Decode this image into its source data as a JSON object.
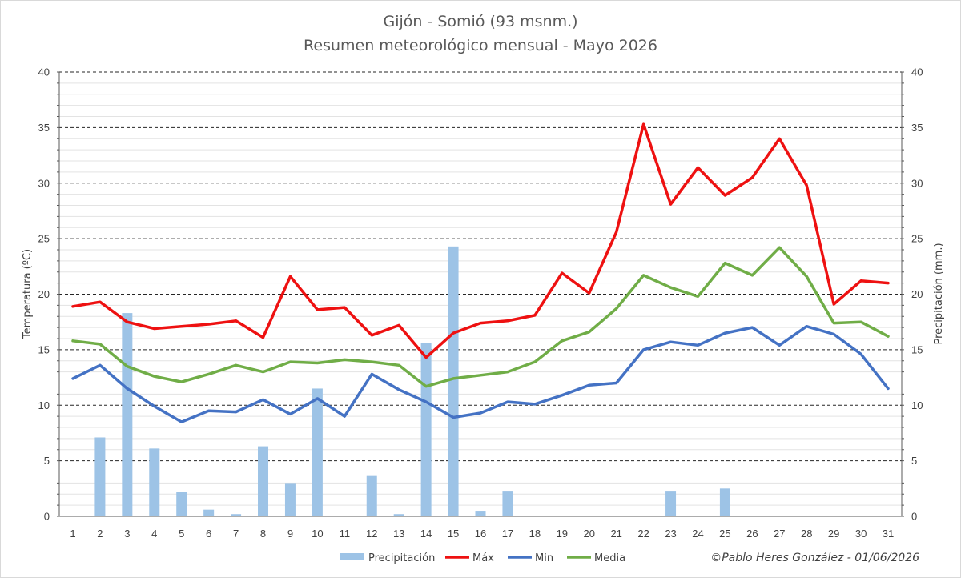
{
  "chart_data": {
    "type": "line",
    "title": "Gijón - Somió (93 msnm.)",
    "subtitle": "Resumen meteorológico mensual - Mayo 2026",
    "ylabel": "Temperatura (ºC)",
    "y2label": "Precipitación (mm.)",
    "ylim": [
      0,
      40
    ],
    "y2lim": [
      0,
      40
    ],
    "yticks": [
      "0",
      "5",
      "10",
      "15",
      "20",
      "25",
      "30",
      "35",
      "40"
    ],
    "x": [
      "1",
      "2",
      "3",
      "4",
      "5",
      "6",
      "7",
      "8",
      "9",
      "10",
      "11",
      "12",
      "13",
      "14",
      "15",
      "16",
      "17",
      "18",
      "19",
      "20",
      "21",
      "22",
      "23",
      "24",
      "25",
      "26",
      "27",
      "28",
      "29",
      "30",
      "31"
    ],
    "series": [
      {
        "name": "Precipitación",
        "type": "bar",
        "axis": "right",
        "color": "#9dc3e6",
        "values": [
          0,
          7.1,
          18.3,
          6.1,
          2.2,
          0.6,
          0.2,
          6.3,
          3.0,
          11.5,
          0,
          3.7,
          0.2,
          15.6,
          24.3,
          0.5,
          2.3,
          0,
          0,
          0,
          0,
          0,
          2.3,
          0,
          2.5,
          0,
          0,
          0,
          0,
          0,
          0
        ]
      },
      {
        "name": "Máx",
        "type": "line",
        "axis": "left",
        "color": "#ee1111",
        "values": [
          18.9,
          19.3,
          17.5,
          16.9,
          17.1,
          17.3,
          17.6,
          16.1,
          21.6,
          18.6,
          18.8,
          16.3,
          17.2,
          14.3,
          16.5,
          17.4,
          17.6,
          18.1,
          21.9,
          20.1,
          25.6,
          35.3,
          28.1,
          31.4,
          28.9,
          30.5,
          34.0,
          29.8,
          19.1,
          21.2,
          21.0
        ]
      },
      {
        "name": "Min",
        "type": "line",
        "axis": "left",
        "color": "#4472c4",
        "values": [
          12.4,
          13.6,
          11.5,
          9.9,
          8.5,
          9.5,
          9.4,
          10.5,
          9.2,
          10.6,
          9.0,
          12.8,
          11.4,
          10.3,
          8.9,
          9.3,
          10.3,
          10.1,
          10.9,
          11.8,
          12.0,
          15.0,
          15.7,
          15.4,
          16.5,
          17.0,
          15.4,
          17.1,
          16.4,
          14.6,
          11.5
        ]
      },
      {
        "name": "Media",
        "type": "line",
        "axis": "left",
        "color": "#70ad47",
        "values": [
          15.8,
          15.5,
          13.5,
          12.6,
          12.1,
          12.8,
          13.6,
          13.0,
          13.9,
          13.8,
          14.1,
          13.9,
          13.6,
          11.7,
          12.4,
          12.7,
          13.0,
          13.9,
          15.8,
          16.6,
          18.7,
          21.7,
          20.6,
          19.8,
          22.8,
          21.7,
          24.2,
          21.6,
          17.4,
          17.5,
          16.2
        ]
      }
    ],
    "grid": true,
    "legend": "bottom-center",
    "credit": "©Pablo Heres González - 01/06/2026"
  }
}
